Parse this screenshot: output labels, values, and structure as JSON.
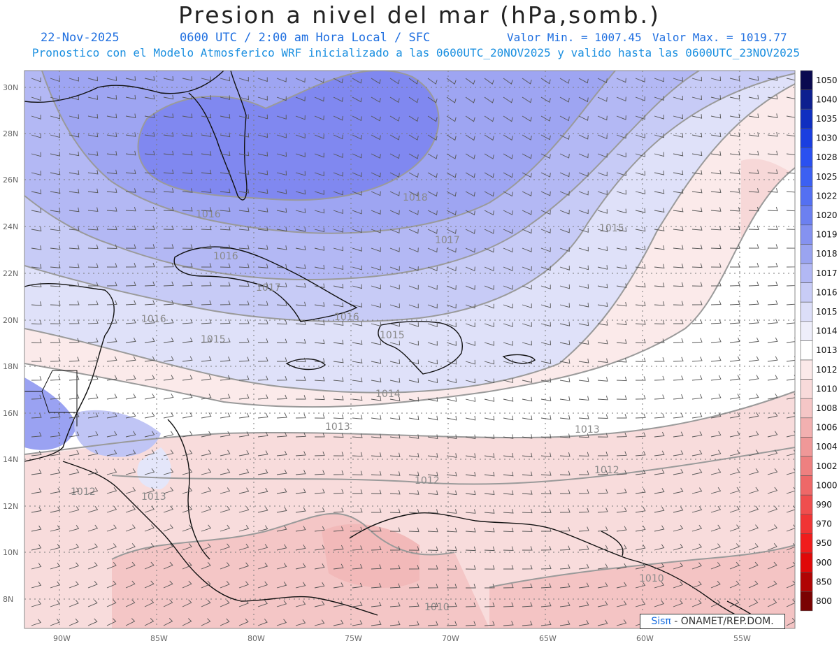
{
  "header": {
    "title": "Presion a nivel del mar (hPa,somb.)",
    "date": "22-Nov-2025",
    "time_info": "0600 UTC / 2:00 am Hora Local / SFC",
    "min_value": "Valor Min. = 1007.45",
    "max_value": "Valor Max. = 1019.77",
    "model_info": "Pronostico con el Modelo Atmosferico WRF inicializado a las 0600UTC_20NOV2025 y valido hasta las  0600UTC_23NOV2025"
  },
  "axes": {
    "lon_labels": [
      "90W",
      "85W",
      "80W",
      "75W",
      "70W",
      "65W",
      "60W",
      "55W"
    ],
    "lat_labels": [
      "30N",
      "28N",
      "26N",
      "24N",
      "22N",
      "20N",
      "18N",
      "16N",
      "14N",
      "12N",
      "10N",
      "8N"
    ]
  },
  "colorbar": {
    "levels": [
      {
        "label": "1050",
        "color": "#0a0a50"
      },
      {
        "label": "1040",
        "color": "#0d1f8f"
      },
      {
        "label": "1035",
        "color": "#0f2fc0"
      },
      {
        "label": "1030",
        "color": "#1a3ee0"
      },
      {
        "label": "1028",
        "color": "#2a50f0"
      },
      {
        "label": "1025",
        "color": "#3c60f2"
      },
      {
        "label": "1022",
        "color": "#5470f2"
      },
      {
        "label": "1020",
        "color": "#6c80f0"
      },
      {
        "label": "1019",
        "color": "#8592f0"
      },
      {
        "label": "1018",
        "color": "#9aa4f0"
      },
      {
        "label": "1017",
        "color": "#b2b8f4"
      },
      {
        "label": "1016",
        "color": "#c8ccf6"
      },
      {
        "label": "1015",
        "color": "#dcdef8"
      },
      {
        "label": "1014",
        "color": "#eeeefa"
      },
      {
        "label": "1013",
        "color": "#ffffff"
      },
      {
        "label": "1012",
        "color": "#fbe9e9"
      },
      {
        "label": "1010",
        "color": "#f8dada"
      },
      {
        "label": "1008",
        "color": "#f5c6c6"
      },
      {
        "label": "1006",
        "color": "#f2b0b0"
      },
      {
        "label": "1004",
        "color": "#ef9898"
      },
      {
        "label": "1002",
        "color": "#ee8080"
      },
      {
        "label": "1000",
        "color": "#ee6868"
      },
      {
        "label": "990",
        "color": "#ef4e4e"
      },
      {
        "label": "970",
        "color": "#f03434"
      },
      {
        "label": "950",
        "color": "#f01c1c"
      },
      {
        "label": "900",
        "color": "#e00808"
      },
      {
        "label": "850",
        "color": "#b00404"
      },
      {
        "label": "800",
        "color": "#7a0202"
      }
    ]
  },
  "contour_labels": [
    "1018",
    "1016",
    "1015",
    "1017",
    "1016",
    "1017",
    "1016",
    "1016",
    "1015",
    "1015",
    "1014",
    "1013",
    "1013",
    "1012",
    "1012",
    "1012",
    "1013",
    "1010",
    "1010"
  ],
  "credit": {
    "brand": "Sis",
    "pi": "π",
    "text": " - ONAMET/REP.DOM."
  },
  "map_colors": {
    "high": "#7f86f2",
    "mid": "#aab0f4",
    "low_blue": "#dcdef8",
    "neutral": "#ffffff",
    "low_red": "#f8d4d4",
    "red": "#f4bcbc"
  }
}
